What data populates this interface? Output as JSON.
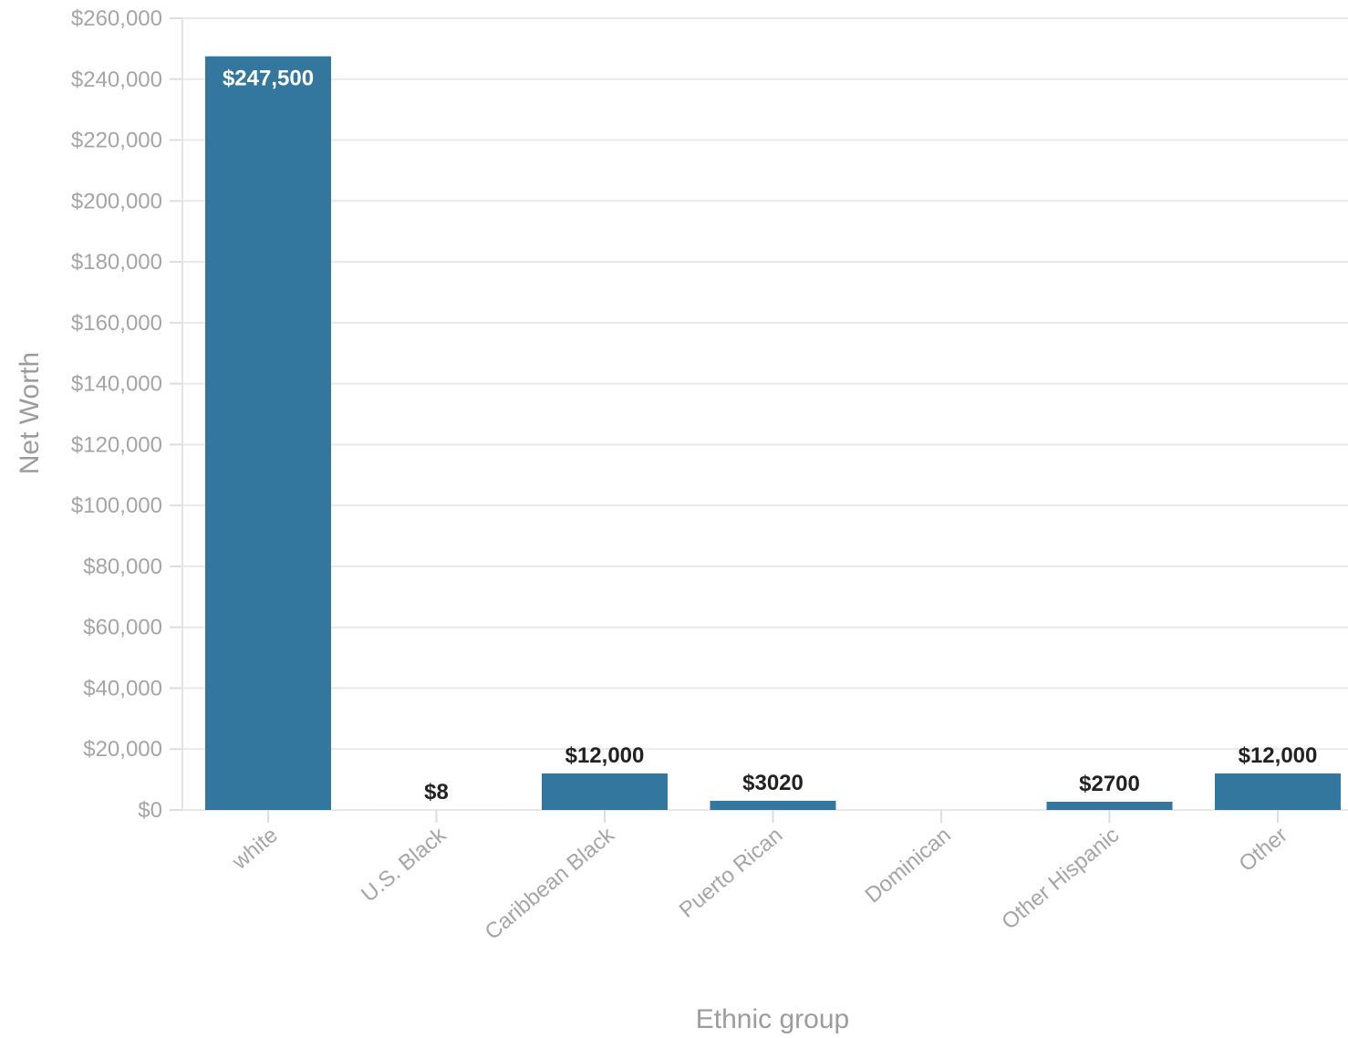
{
  "chart_data": {
    "type": "bar",
    "categories": [
      "white",
      "U.S. Black",
      "Caribbean Black",
      "Puerto Rican",
      "Dominican",
      "Other Hispanic",
      "Other"
    ],
    "values": [
      247500,
      8,
      12000,
      3020,
      0,
      2700,
      12000
    ],
    "data_labels": [
      "$247,500",
      "$8",
      "$12,000",
      "$3020",
      "",
      "$2700",
      "$12,000"
    ],
    "xlabel": "Ethnic group",
    "ylabel": "Net Worth",
    "ylim": [
      0,
      260000
    ],
    "y_ticks": [
      0,
      20000,
      40000,
      60000,
      80000,
      100000,
      120000,
      140000,
      160000,
      180000,
      200000,
      220000,
      240000,
      260000
    ],
    "y_tick_labels": [
      "$0",
      "$20,000",
      "$40,000",
      "$60,000",
      "$80,000",
      "$100,000",
      "$120,000",
      "$140,000",
      "$160,000",
      "$180,000",
      "$200,000",
      "$220,000",
      "$240,000",
      "$260,000"
    ],
    "grid": true,
    "legend": "none",
    "bar_color": "#33779f"
  }
}
